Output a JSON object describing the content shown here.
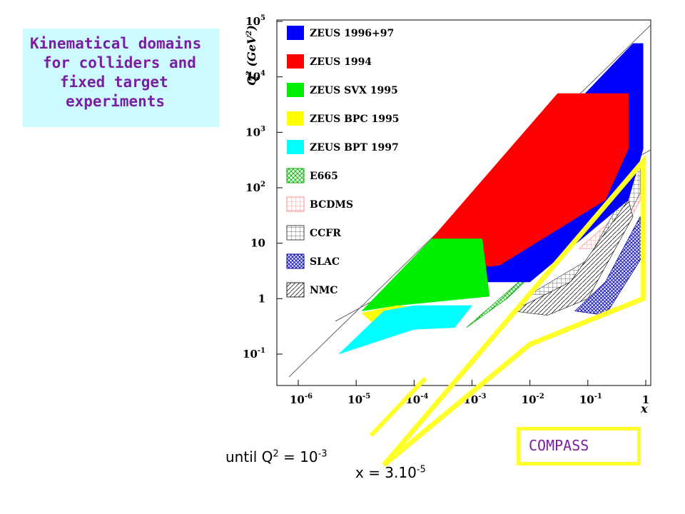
{
  "title_lines": [
    "Kinematical domains",
    "for colliders and",
    "fixed target",
    "experiments"
  ],
  "notes": {
    "until": "until Q",
    "until_sup": "2",
    "until_eq": " = 10",
    "until_exp": "-3",
    "x_eq": "x = 3.10",
    "x_exp": "-5",
    "compass": "COMPASS"
  },
  "chart_data": {
    "type": "area",
    "xlabel": "x",
    "ylabel": "Q2 (GeV2)",
    "x_scale": "log",
    "y_scale": "log",
    "xlim": [
      1e-06,
      1
    ],
    "ylim": [
      0.1,
      100000
    ],
    "x_ticks": [
      {
        "base": "10",
        "exp": "-6"
      },
      {
        "base": "10",
        "exp": "-5"
      },
      {
        "base": "10",
        "exp": "-4"
      },
      {
        "base": "10",
        "exp": "-3"
      },
      {
        "base": "10",
        "exp": "-2"
      },
      {
        "base": "10",
        "exp": "-1"
      },
      {
        "base": "1",
        "exp": ""
      }
    ],
    "y_ticks": [
      {
        "base": "10",
        "exp": "-1"
      },
      {
        "base": "1",
        "exp": ""
      },
      {
        "base": "10",
        "exp": ""
      },
      {
        "base": "10",
        "exp": "2"
      },
      {
        "base": "10",
        "exp": "3"
      },
      {
        "base": "10",
        "exp": "4"
      },
      {
        "base": "10",
        "exp": "5"
      }
    ],
    "legend_position": "top-left",
    "series": [
      {
        "name": "ZEUS 1996+97",
        "color": "#0000ff",
        "fill": "solid",
        "points": [
          [
            4e-05,
            2
          ],
          [
            0.01,
            2
          ],
          [
            0.5,
            60
          ],
          [
            0.9,
            500
          ],
          [
            0.9,
            40000
          ],
          [
            0.6,
            40000
          ],
          [
            0.0001,
            3
          ]
        ]
      },
      {
        "name": "ZEUS 1994",
        "color": "#ff0000",
        "fill": "solid",
        "points": [
          [
            0.0002,
            12
          ],
          [
            0.03,
            5000
          ],
          [
            0.5,
            5000
          ],
          [
            0.5,
            500
          ],
          [
            0.2,
            60
          ],
          [
            0.003,
            4
          ],
          [
            0.0002,
            3
          ]
        ]
      },
      {
        "name": "ZEUS SVX 1995",
        "color": "#00ee00",
        "fill": "solid",
        "points": [
          [
            1.25e-05,
            0.6
          ],
          [
            5e-05,
            0.75
          ],
          [
            0.002,
            1.1
          ],
          [
            0.0015,
            12
          ],
          [
            0.0002,
            12
          ]
        ]
      },
      {
        "name": "ZEUS BPC 1995",
        "color": "#ffff00",
        "fill": "solid",
        "points": [
          [
            1.25e-05,
            0.55
          ],
          [
            5e-05,
            0.75
          ],
          [
            0.0001,
            0.7
          ],
          [
            0.00012,
            0.35
          ],
          [
            2e-05,
            0.35
          ]
        ]
      },
      {
        "name": "ZEUS BPT 1997",
        "color": "#00ffff",
        "fill": "solid",
        "points": [
          [
            5e-06,
            0.1
          ],
          [
            3e-05,
            0.6
          ],
          [
            0.0001,
            0.75
          ],
          [
            0.001,
            0.75
          ],
          [
            0.0005,
            0.3
          ],
          [
            0.0001,
            0.28
          ]
        ]
      },
      {
        "name": "E665",
        "color": "#00aa00",
        "fill": "crosshatch",
        "points": [
          [
            0.0008,
            0.3
          ],
          [
            0.004,
            1
          ],
          [
            0.05,
            12
          ],
          [
            0.2,
            60
          ],
          [
            0.6,
            200
          ],
          [
            0.1,
            30
          ],
          [
            0.01,
            3
          ]
        ]
      },
      {
        "name": "BCDMS",
        "color": "#ff8888",
        "fill": "grid",
        "points": [
          [
            0.07,
            8
          ],
          [
            0.3,
            30
          ],
          [
            0.8,
            260
          ],
          [
            0.8,
            60
          ],
          [
            0.3,
            8
          ]
        ]
      },
      {
        "name": "CCFR",
        "color": "#444444",
        "fill": "grid",
        "points": [
          [
            0.01,
            1.2
          ],
          [
            0.1,
            5
          ],
          [
            0.8,
            260
          ],
          [
            0.8,
            80
          ],
          [
            0.1,
            1.2
          ]
        ]
      },
      {
        "name": "SLAC",
        "color": "#0000aa",
        "fill": "crosshatch",
        "points": [
          [
            0.06,
            0.6
          ],
          [
            0.2,
            2
          ],
          [
            0.8,
            30
          ],
          [
            0.9,
            6
          ],
          [
            0.2,
            0.5
          ]
        ]
      },
      {
        "name": "NMC",
        "color": "#222222",
        "fill": "diagonal",
        "points": [
          [
            0.005,
            0.6
          ],
          [
            0.05,
            2
          ],
          [
            0.5,
            60
          ],
          [
            0.6,
            30
          ],
          [
            0.1,
            1
          ],
          [
            0.02,
            0.5
          ]
        ]
      }
    ],
    "compass_region": [
      [
        3e-05,
        0.001
      ],
      [
        0.9,
        300
      ],
      [
        0.9,
        1
      ],
      [
        0.01,
        0.15
      ]
    ]
  }
}
